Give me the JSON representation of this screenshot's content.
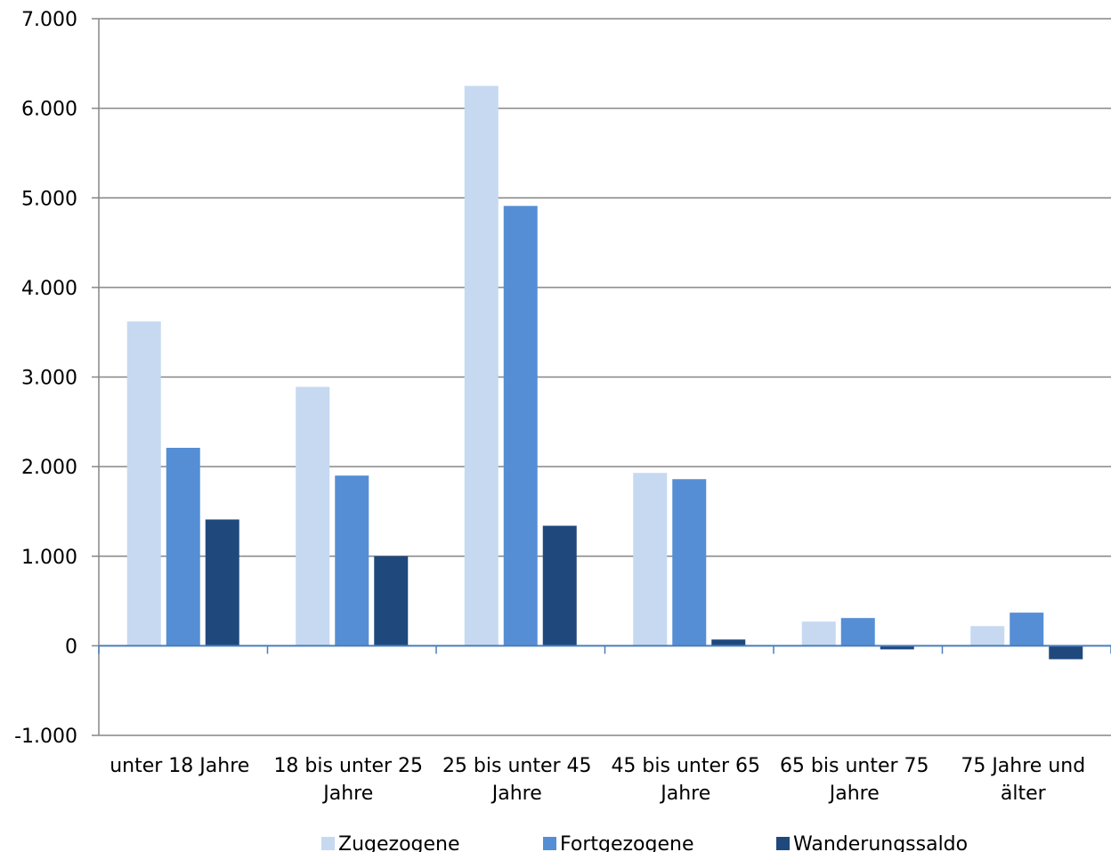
{
  "chart_data": {
    "type": "bar",
    "title": "",
    "xlabel": "",
    "ylabel": "",
    "ylim": [
      -1000,
      7000
    ],
    "yticks": [
      -1000,
      0,
      1000,
      2000,
      3000,
      4000,
      5000,
      6000,
      7000
    ],
    "ytick_labels": [
      "-1.000",
      "0",
      "1.000",
      "2.000",
      "3.000",
      "4.000",
      "5.000",
      "6.000",
      "7.000"
    ],
    "grid": true,
    "legend_position": "bottom",
    "categories": [
      [
        "unter 18 Jahre"
      ],
      [
        "18 bis unter 25",
        "Jahre"
      ],
      [
        "25 bis unter 45",
        "Jahre"
      ],
      [
        "45 bis unter 65",
        "Jahre"
      ],
      [
        "65 bis unter 75",
        "Jahre"
      ],
      [
        "75 Jahre und",
        "älter"
      ]
    ],
    "series": [
      {
        "name": "Zugezogene",
        "color": "#c6d9f1",
        "values": [
          3620,
          2890,
          6250,
          1930,
          270,
          220
        ]
      },
      {
        "name": "Fortgezogene",
        "color": "#558ed5",
        "values": [
          2210,
          1900,
          4910,
          1860,
          310,
          370
        ]
      },
      {
        "name": "Wanderungssaldo",
        "color": "#1f497d",
        "values": [
          1410,
          1000,
          1340,
          70,
          -40,
          -150
        ]
      }
    ]
  }
}
